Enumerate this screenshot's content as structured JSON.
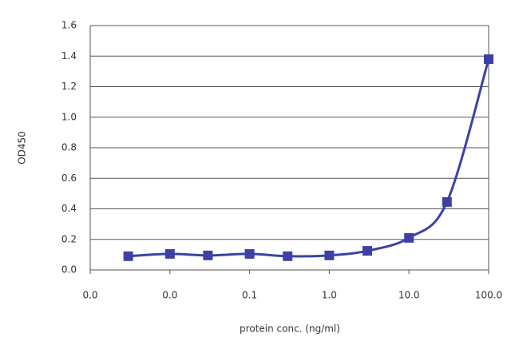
{
  "chart_data": {
    "type": "line",
    "x_label": "protein conc. (ng/ml)",
    "y_label": "OD450",
    "x": [
      0.003,
      0.01,
      0.03,
      0.1,
      0.3,
      1,
      3,
      10,
      30,
      100
    ],
    "series": [
      {
        "color": "#3d41a5",
        "values": [
          0.09,
          0.105,
          0.095,
          0.105,
          0.09,
          0.095,
          0.125,
          0.21,
          0.445,
          1.38
        ]
      }
    ],
    "xlim": [
      0.001,
      100
    ],
    "xlog": true,
    "xticks": [
      {
        "value": 0.001,
        "label": "0.0"
      },
      {
        "value": 0.01,
        "label": "0.0"
      },
      0.1,
      {
        "value": 1,
        "label": "1.0"
      },
      {
        "value": 10,
        "label": "10.0"
      },
      {
        "value": 100,
        "label": "100.0"
      }
    ],
    "ylim": [
      0,
      1.6
    ],
    "yticks": [
      {
        "value": 0,
        "label": "0.0"
      },
      0.2,
      0.4,
      0.6,
      0.8,
      {
        "value": 1,
        "label": "1.0"
      },
      1.2,
      1.4,
      1.6
    ],
    "grid": true
  }
}
